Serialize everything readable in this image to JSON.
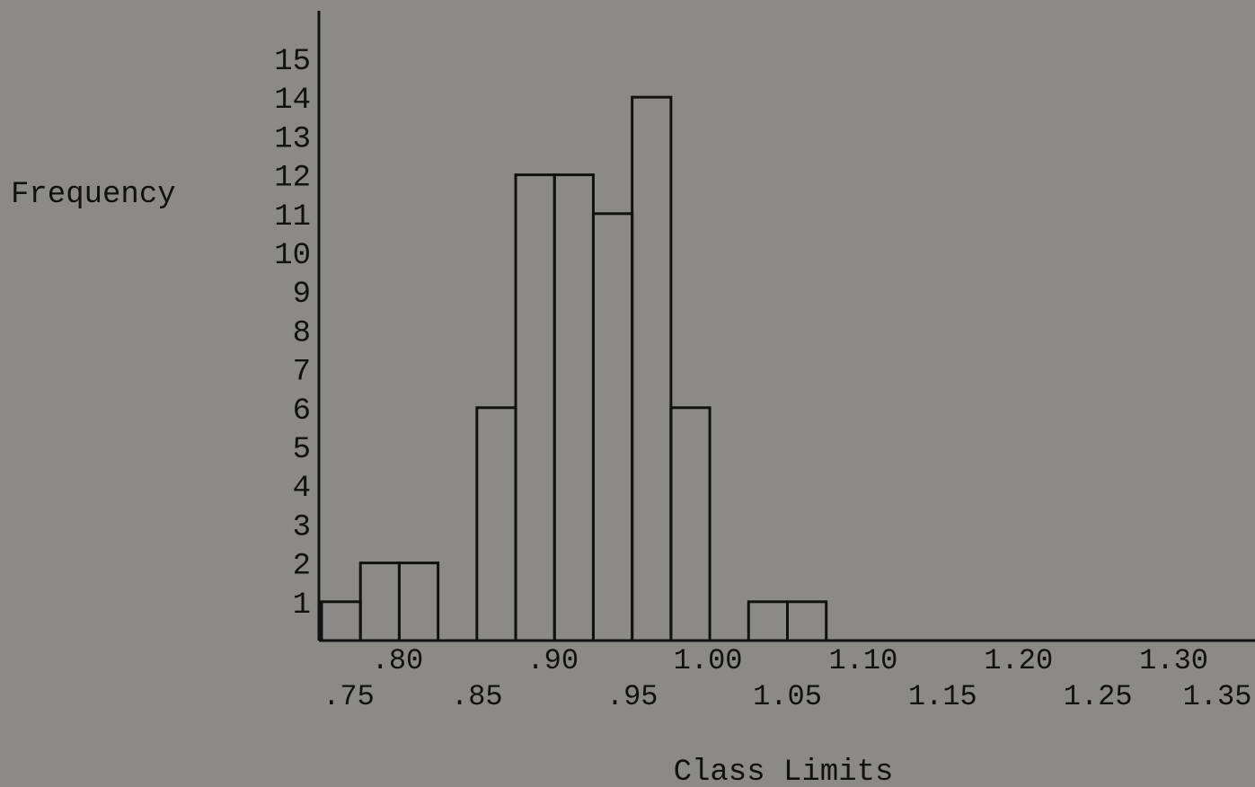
{
  "chart_data": {
    "type": "bar",
    "title": "",
    "xlabel": "Class Limits",
    "ylabel": "Frequency",
    "ylim": [
      0,
      15
    ],
    "xlim": [
      0.75,
      1.35
    ],
    "y_ticks": [
      "1",
      "2",
      "3",
      "4",
      "5",
      "6",
      "7",
      "8",
      "9",
      "10",
      "11",
      "12",
      "13",
      "14",
      "15"
    ],
    "x_ticks_upper": [
      ".80",
      ".90",
      "1.00",
      "1.10",
      "1.20",
      "1.30"
    ],
    "x_ticks_lower": [
      ".75",
      ".85",
      ".95",
      "1.05",
      "1.15",
      "1.25",
      "1.35"
    ],
    "bins": [
      {
        "from": 0.75,
        "to": 0.775,
        "value": 1
      },
      {
        "from": 0.775,
        "to": 0.8,
        "value": 2
      },
      {
        "from": 0.8,
        "to": 0.825,
        "value": 2
      },
      {
        "from": 0.825,
        "to": 0.85,
        "value": 0
      },
      {
        "from": 0.85,
        "to": 0.875,
        "value": 6
      },
      {
        "from": 0.875,
        "to": 0.9,
        "value": 12
      },
      {
        "from": 0.9,
        "to": 0.925,
        "value": 12
      },
      {
        "from": 0.925,
        "to": 0.95,
        "value": 11
      },
      {
        "from": 0.95,
        "to": 0.975,
        "value": 14
      },
      {
        "from": 0.975,
        "to": 1.0,
        "value": 6
      },
      {
        "from": 1.0,
        "to": 1.025,
        "value": 0
      },
      {
        "from": 1.025,
        "to": 1.05,
        "value": 1
      },
      {
        "from": 1.05,
        "to": 1.075,
        "value": 1
      }
    ],
    "grid": false,
    "legend": "none"
  }
}
